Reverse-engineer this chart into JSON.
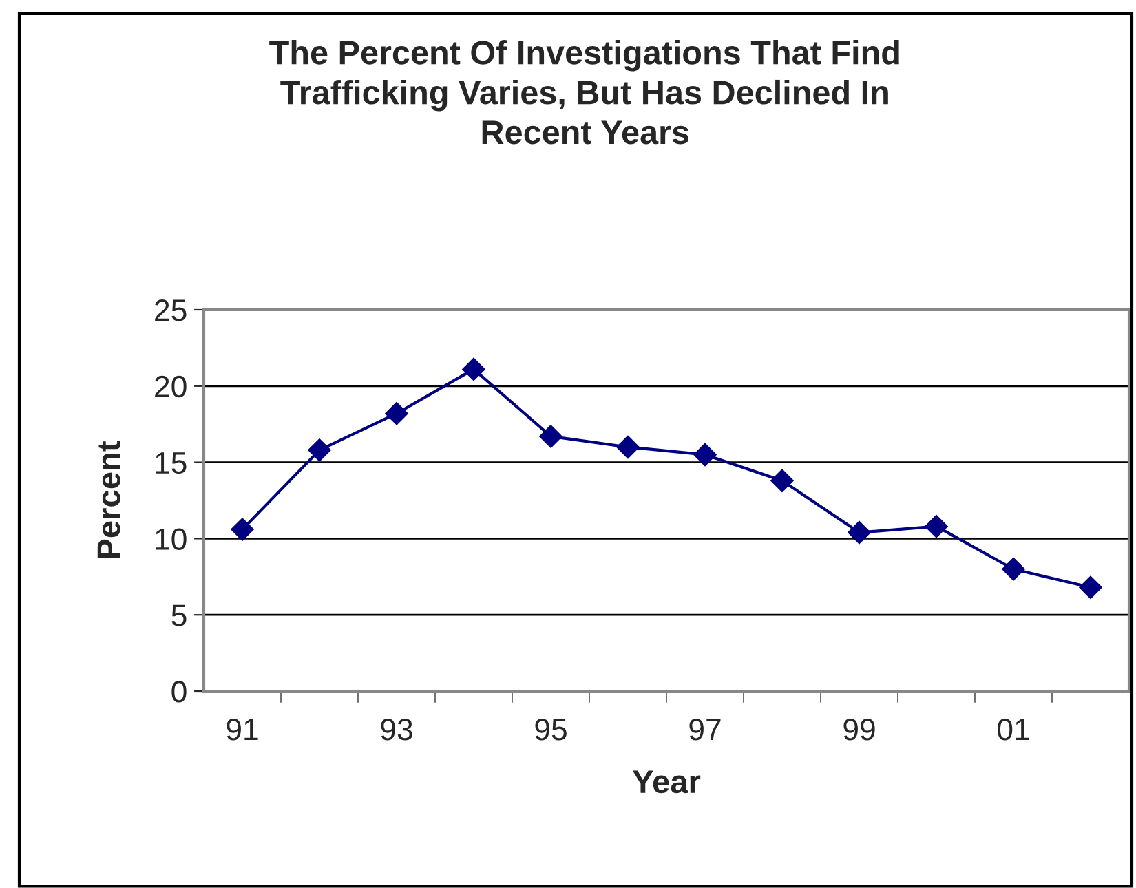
{
  "chart_data": {
    "type": "line",
    "title": "The Percent Of Investigations That Find\nTrafficking Varies, But Has Declined In\nRecent Years",
    "xlabel": "Year",
    "ylabel": "Percent",
    "categories": [
      "91",
      null,
      "93",
      null,
      "95",
      null,
      "97",
      null,
      "99",
      null,
      "01",
      null
    ],
    "series": [
      {
        "color": "#000080",
        "values": [
          10.6,
          15.8,
          18.2,
          21.1,
          16.7,
          16.0,
          15.5,
          13.8,
          10.4,
          10.8,
          8.0,
          6.8
        ]
      }
    ],
    "ylim": [
      0,
      25
    ],
    "yticks": [
      0,
      5,
      10,
      15,
      20,
      25
    ],
    "grid": "y",
    "marker": "diamond",
    "line_style": "solid"
  }
}
